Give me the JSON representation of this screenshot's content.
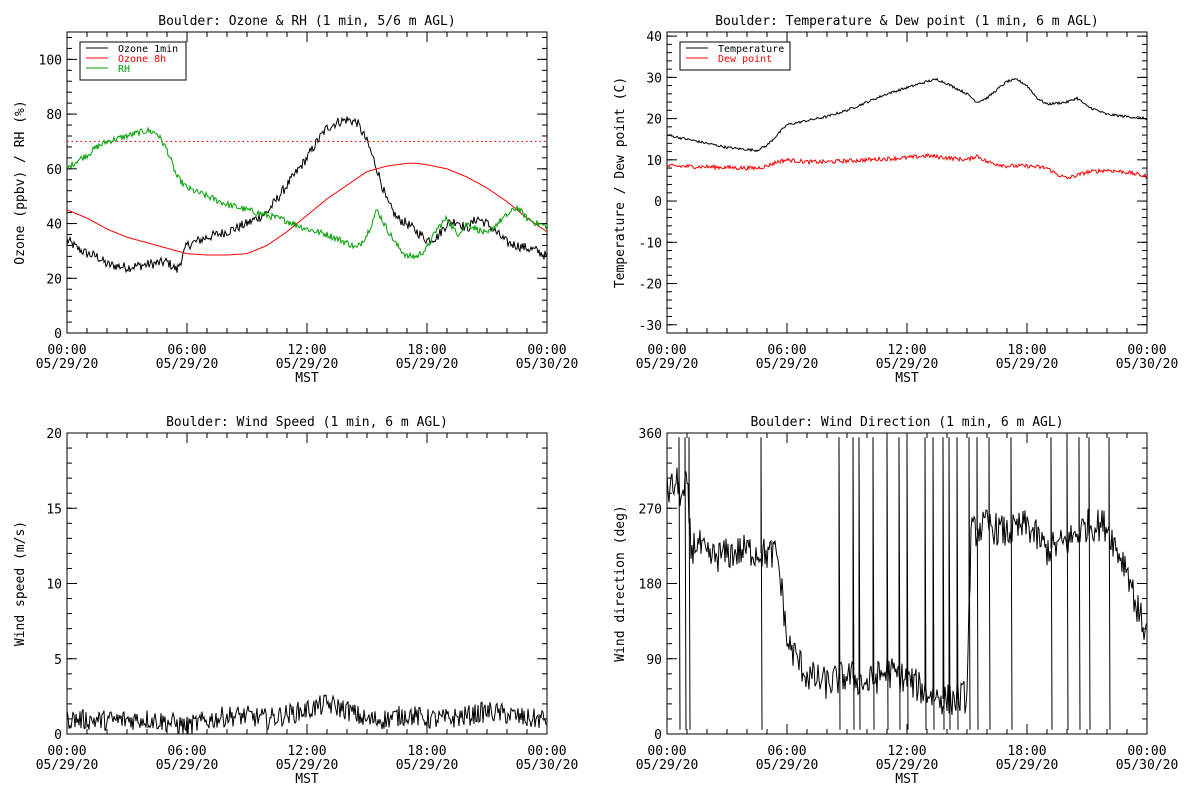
{
  "chart_data": [
    {
      "type": "line",
      "title": "Boulder: Ozone & RH (1 min, 5/6 m AGL)",
      "xlabel": "MST",
      "ylabel": "Ozone (ppbv) / RH (%)",
      "xlim": [
        0,
        24
      ],
      "ylim": [
        0,
        110
      ],
      "x_ticks": [
        {
          "time": "00:00",
          "date": "05/29/20"
        },
        {
          "time": "06:00",
          "date": "05/29/20"
        },
        {
          "time": "12:00",
          "date": "05/29/20"
        },
        {
          "time": "18:00",
          "date": "05/29/20"
        },
        {
          "time": "00:00",
          "date": "05/30/20"
        }
      ],
      "y_ticks": [
        "0",
        "20",
        "40",
        "60",
        "80",
        "100"
      ],
      "legend": "top-left",
      "reference_line": {
        "y": 70,
        "color": "#ff0000",
        "style": "dotted"
      },
      "series": [
        {
          "name": "Ozone 1min",
          "color": "#000000",
          "noise": 1.8,
          "x": [
            0,
            0.5,
            1,
            1.5,
            2,
            3,
            4,
            5,
            5.5,
            6,
            7,
            8,
            9,
            10,
            11,
            12,
            12.5,
            13,
            13.5,
            14,
            14.5,
            15,
            15.5,
            16,
            16.5,
            17,
            17.5,
            18,
            18.5,
            19,
            19.5,
            20,
            20.5,
            21,
            22,
            23,
            23.5,
            24
          ],
          "y": [
            34,
            31,
            29,
            28,
            25,
            24,
            25,
            26,
            23,
            32,
            35,
            37,
            40,
            44,
            54,
            64,
            70,
            75,
            77,
            78,
            77,
            70,
            60,
            48,
            42,
            40,
            37,
            34,
            35,
            40,
            41,
            38,
            42,
            40,
            33,
            31,
            30,
            28
          ]
        },
        {
          "name": "Ozone 8h",
          "color": "#ff0000",
          "noise": 0,
          "x": [
            0,
            1,
            2,
            3,
            4,
            5,
            6,
            7,
            8,
            9,
            10,
            11,
            12,
            13,
            14,
            15,
            16,
            17,
            17.5,
            18,
            19,
            20,
            21,
            22,
            23,
            24
          ],
          "y": [
            45,
            42,
            38,
            35,
            33,
            31,
            29,
            28.5,
            28.5,
            29,
            32,
            37,
            43,
            49,
            54,
            59,
            61,
            62,
            62,
            61.5,
            60,
            57,
            53,
            48,
            42,
            37
          ]
        },
        {
          "name": "RH",
          "color": "#00a000",
          "noise": 1.2,
          "x": [
            0,
            0.5,
            1,
            1.5,
            2,
            2.5,
            3,
            3.5,
            4,
            4.5,
            5,
            5.5,
            6,
            7,
            8,
            9,
            10,
            11,
            12,
            13,
            14,
            14.5,
            15,
            15.5,
            16,
            16.5,
            17,
            17.5,
            18,
            18.5,
            19,
            19.5,
            20,
            20.5,
            21,
            21.5,
            22,
            22.5,
            23,
            23.5,
            24
          ],
          "y": [
            60,
            63,
            65,
            68,
            70,
            71,
            72,
            73,
            74,
            73,
            67,
            57,
            53,
            50,
            47,
            45,
            43,
            41,
            38,
            36,
            33,
            31,
            36,
            45,
            38,
            32,
            28,
            28,
            31,
            38,
            42,
            36,
            40,
            38,
            36,
            40,
            43,
            46,
            42,
            40,
            39
          ]
        }
      ]
    },
    {
      "type": "line",
      "title": "Boulder: Temperature & Dew point (1 min, 6 m AGL)",
      "xlabel": "MST",
      "ylabel": "Temperature / Dew point (C)",
      "xlim": [
        0,
        24
      ],
      "ylim": [
        -32,
        41
      ],
      "x_ticks": [
        {
          "time": "00:00",
          "date": "05/29/20"
        },
        {
          "time": "06:00",
          "date": "05/29/20"
        },
        {
          "time": "12:00",
          "date": "05/29/20"
        },
        {
          "time": "18:00",
          "date": "05/29/20"
        },
        {
          "time": "00:00",
          "date": "05/30/20"
        }
      ],
      "y_ticks": [
        "-30",
        "-20",
        "-10",
        "0",
        "10",
        "20",
        "30",
        "40"
      ],
      "legend": "top-left",
      "series": [
        {
          "name": "Temperature",
          "color": "#000000",
          "noise": 0.3,
          "x": [
            0,
            1,
            2,
            3,
            4,
            4.5,
            5,
            5.5,
            6,
            7,
            8,
            9,
            10,
            11,
            12,
            13,
            13.5,
            14,
            15,
            15.5,
            16,
            17,
            17.5,
            18,
            18.5,
            19,
            20,
            20.5,
            21,
            22,
            23,
            24
          ],
          "y": [
            16,
            15,
            14,
            13,
            12.5,
            12.3,
            13.5,
            16,
            18.5,
            19.5,
            20.5,
            22,
            24,
            26,
            27.5,
            29,
            29.5,
            28.5,
            26,
            24,
            25,
            29,
            29.5,
            28,
            25,
            23.5,
            24,
            25,
            23,
            21,
            20.5,
            20
          ]
        },
        {
          "name": "Dew point",
          "color": "#ff0000",
          "noise": 0.5,
          "x": [
            0,
            2,
            4,
            4.5,
            5,
            5.5,
            6,
            7,
            8,
            10,
            12,
            13,
            14,
            15,
            15.5,
            16,
            17,
            18,
            19,
            19.5,
            20,
            21,
            22,
            23,
            24
          ],
          "y": [
            8.5,
            8.3,
            8,
            8,
            8.5,
            9.5,
            10,
            9.5,
            9.5,
            10,
            10.5,
            11,
            10.5,
            10,
            11,
            9.5,
            8.5,
            8.5,
            8,
            6.5,
            5.5,
            7,
            7.5,
            7,
            6
          ]
        }
      ]
    },
    {
      "type": "line",
      "title": "Boulder: Wind Speed (1 min, 6 m AGL)",
      "xlabel": "MST",
      "ylabel": "Wind speed (m/s)",
      "xlim": [
        0,
        24
      ],
      "ylim": [
        0,
        20
      ],
      "x_ticks": [
        {
          "time": "00:00",
          "date": "05/29/20"
        },
        {
          "time": "06:00",
          "date": "05/29/20"
        },
        {
          "time": "12:00",
          "date": "05/29/20"
        },
        {
          "time": "18:00",
          "date": "05/29/20"
        },
        {
          "time": "00:00",
          "date": "05/30/20"
        }
      ],
      "y_ticks": [
        "0",
        "5",
        "10",
        "15",
        "20"
      ],
      "series": [
        {
          "name": "",
          "color": "#000000",
          "noise": 0.7,
          "x": [
            0,
            2,
            4,
            5,
            6,
            7,
            8,
            9,
            10,
            11,
            12,
            13,
            14,
            15,
            16,
            17,
            18,
            19,
            20,
            21,
            22,
            23,
            24
          ],
          "y": [
            1,
            0.9,
            1,
            0.8,
            0.5,
            0.9,
            1.2,
            1.2,
            1.0,
            1.3,
            1.6,
            2.0,
            1.6,
            0.9,
            1.0,
            1.3,
            1.0,
            1.0,
            1.2,
            1.5,
            1.3,
            1.0,
            1.0
          ]
        }
      ]
    },
    {
      "type": "line",
      "title": "Boulder: Wind Direction (1 min, 6 m AGL)",
      "xlabel": "MST",
      "ylabel": "Wind direction (deg)",
      "xlim": [
        0,
        24
      ],
      "ylim": [
        0,
        360
      ],
      "x_ticks": [
        {
          "time": "00:00",
          "date": "05/29/20"
        },
        {
          "time": "06:00",
          "date": "05/29/20"
        },
        {
          "time": "12:00",
          "date": "05/29/20"
        },
        {
          "time": "18:00",
          "date": "05/29/20"
        },
        {
          "time": "00:00",
          "date": "05/30/20"
        }
      ],
      "y_ticks": [
        "0",
        "90",
        "180",
        "270",
        "360"
      ],
      "series": [
        {
          "name": "",
          "color": "#000000",
          "noise": 20,
          "x": [
            0,
            0.5,
            0.8,
            1,
            1.2,
            1.5,
            2,
            3,
            4,
            5,
            5.5,
            5.8,
            6,
            6.5,
            7,
            8,
            9,
            10,
            11,
            12,
            13,
            14,
            15,
            15.2,
            16,
            17,
            18,
            19,
            20,
            21,
            22,
            22.5,
            23,
            23.5,
            24
          ],
          "y": [
            290,
            300,
            280,
            300,
            220,
            230,
            210,
            215,
            220,
            215,
            215,
            160,
            110,
            90,
            70,
            60,
            70,
            60,
            75,
            65,
            50,
            40,
            45,
            240,
            250,
            240,
            250,
            220,
            230,
            250,
            250,
            220,
            200,
            150,
            120
          ]
        }
      ],
      "spikes": [
        0.6,
        0.9,
        1.1,
        4.7,
        8.6,
        9.3,
        9.6,
        10.3,
        11.0,
        11.6,
        12.0,
        12.9,
        13.3,
        13.8,
        14.1,
        14.5,
        15.1,
        15.5,
        16.1,
        17.2,
        19.2,
        20.0,
        20.6,
        21.1,
        22.1
      ]
    }
  ]
}
